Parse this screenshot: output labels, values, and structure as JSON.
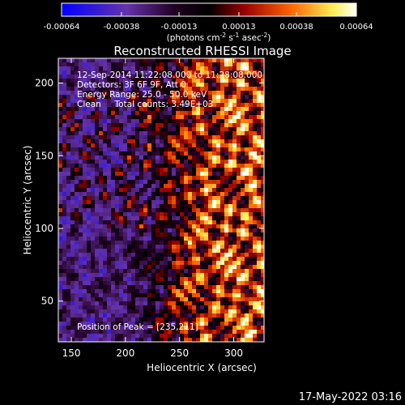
{
  "chart_data": {
    "type": "heatmap",
    "title": "Reconstructed RHESSI Image",
    "xlabel": "Heliocentric X (arcsec)",
    "ylabel": "Heliocentric Y (arcsec)",
    "xlim": [
      138,
      328
    ],
    "ylim": [
      22,
      217
    ],
    "xticks": [
      150,
      200,
      250,
      300
    ],
    "yticks": [
      50,
      100,
      150,
      200
    ],
    "colorbar": {
      "min": -0.00064,
      "max": 0.00064,
      "ticks": [
        "-0.00064",
        "-0.00038",
        "-0.00013",
        "0.00013",
        "0.00038",
        "0.00064"
      ],
      "label_main": "(photons cm",
      "label_exp1": "-2",
      "label_mid": " s",
      "label_exp2": "-1",
      "label_mid2": " asec",
      "label_exp3": "-2",
      "label_end": ")"
    },
    "annotations": {
      "time_range": "12-Sep-2014 11:22:08.000 to 11:28:08.000",
      "detectors": "Detectors: 3F 6F 9F, Att 0",
      "energy": "Energy Range: 25.0 - 50.0 keV",
      "clean": "Clean     Total counts: 3.49E+03",
      "peak": "Position of Peak = [235,211]"
    },
    "peak_position": [
      235,
      211
    ],
    "colormap": [
      "#0000ff",
      "#5522aa",
      "#000000",
      "#aa0000",
      "#ff6600",
      "#ffff66",
      "#ffffff"
    ]
  },
  "footer": {
    "timestamp": "17-May-2022 03:16"
  }
}
